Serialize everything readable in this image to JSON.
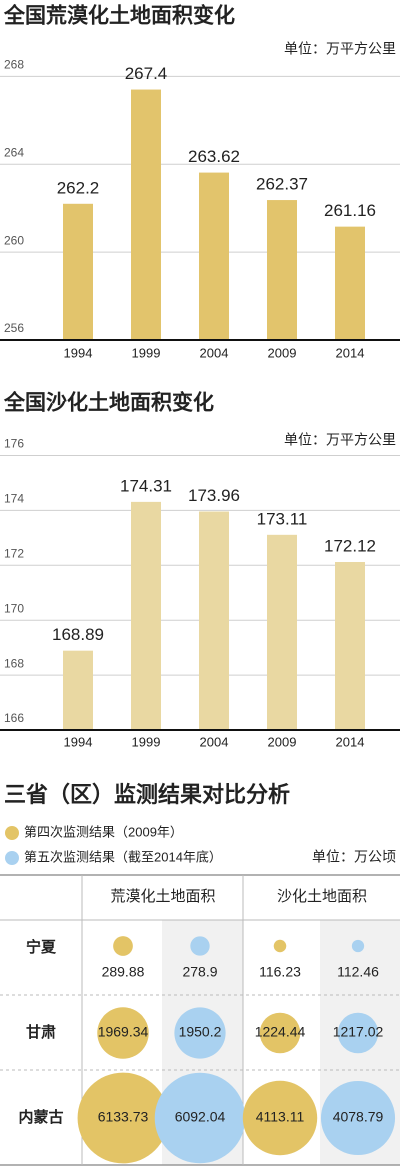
{
  "chart_data": [
    {
      "type": "bar",
      "title": "全国荒漠化土地面积变化",
      "unit": "单位：万平方公里",
      "categories": [
        "1994",
        "1999",
        "2004",
        "2009",
        "2014"
      ],
      "values": [
        262.2,
        267.4,
        263.62,
        262.37,
        261.16
      ],
      "color": "#e2c46c",
      "ylim": [
        256,
        269.2
      ],
      "yticks": [
        256,
        260,
        264,
        268
      ],
      "grid": true
    },
    {
      "type": "bar",
      "title": "全国沙化土地面积变化",
      "unit": "单位：万平方公里",
      "categories": [
        "1994",
        "1999",
        "2004",
        "2009",
        "2014"
      ],
      "values": [
        168.89,
        174.31,
        173.96,
        173.11,
        172.12
      ],
      "color": "#e9d8a2",
      "ylim": [
        166,
        176.2
      ],
      "yticks": [
        166,
        168,
        170,
        172,
        174,
        176
      ],
      "grid": true
    },
    {
      "type": "bubble",
      "title": "三省（区）监测结果对比分析",
      "unit": "单位：万公顷",
      "categories": [
        "宁夏",
        "甘肃",
        "内蒙古"
      ],
      "groups": [
        "荒漠化土地面积",
        "沙化土地面积"
      ],
      "series": [
        {
          "name": "第四次监测结果（2009年）",
          "color": "#e3c466",
          "values": [
            [
              289.88,
              116.23
            ],
            [
              1969.34,
              1224.44
            ],
            [
              6133.73,
              4113.11
            ]
          ]
        },
        {
          "name": "第五次监测结果（截至2014年底）",
          "color": "#a9d1f0",
          "values": [
            [
              278.9,
              112.46
            ],
            [
              1950.2,
              1217.02
            ],
            [
              6092.04,
              4078.79
            ]
          ]
        }
      ]
    }
  ]
}
